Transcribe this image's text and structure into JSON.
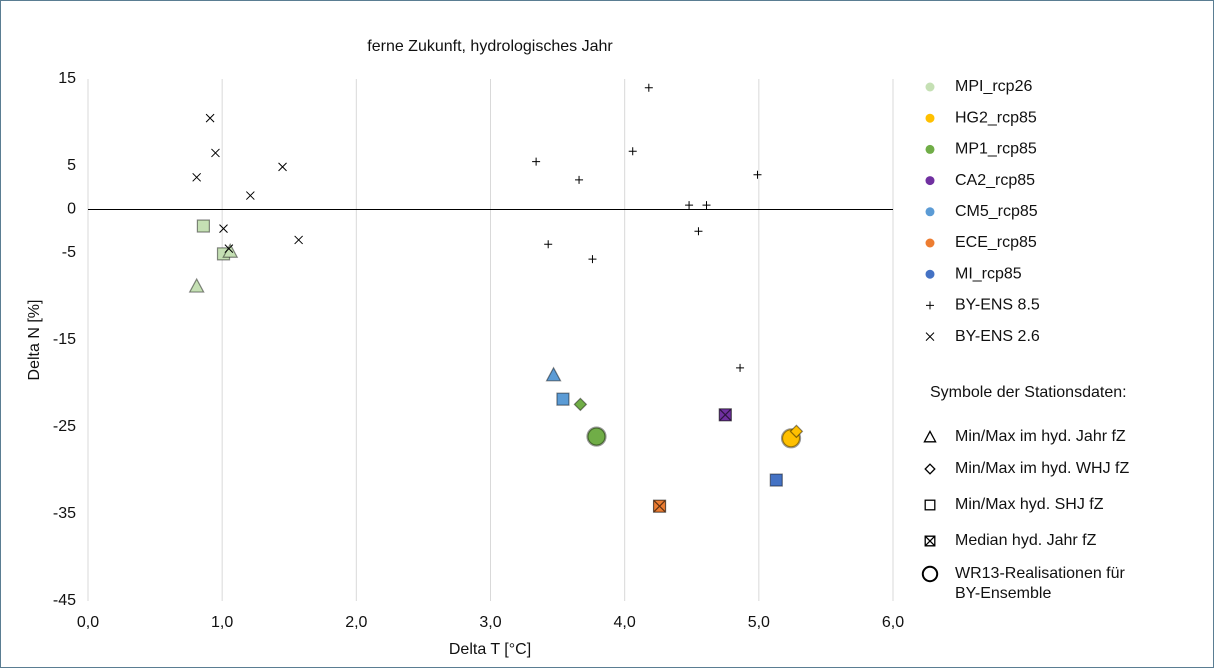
{
  "chart_data": {
    "type": "scatter",
    "title": "ferne Zukunft, hydrologisches Jahr",
    "x_label": "Delta T [°C]",
    "y_label": "Delta N [%]",
    "xlim": [
      0,
      6
    ],
    "ylim": [
      -45,
      15
    ],
    "xticks": [
      {
        "value": 0,
        "label": "0,0"
      },
      {
        "value": 1,
        "label": "1,0"
      },
      {
        "value": 2,
        "label": "2,0"
      },
      {
        "value": 3,
        "label": "3,0"
      },
      {
        "value": 4,
        "label": "4,0"
      },
      {
        "value": 5,
        "label": "5,0"
      },
      {
        "value": 6,
        "label": "6,0"
      }
    ],
    "yticks": [
      15,
      5,
      0,
      -5,
      -15,
      -25,
      -35,
      -45
    ],
    "grid": "x",
    "series": [
      {
        "name": "MPI_rcp26",
        "color": "#c5e0b4",
        "x": [
          0.86,
          1.01,
          1.06,
          0.81
        ],
        "y": [
          -1.9,
          -5.1,
          -4.8,
          -8.8
        ],
        "markers": [
          "square",
          "square",
          "triangle",
          "triangle"
        ]
      },
      {
        "name": "HG2_rcp85",
        "color": "#ffc000",
        "x": [
          5.24,
          5.28
        ],
        "y": [
          -26.3,
          -25.5
        ],
        "markers": [
          "circle",
          "diamond"
        ]
      },
      {
        "name": "MP1_rcp85",
        "color": "#70ad47",
        "x": [
          3.79,
          3.67
        ],
        "y": [
          -26.1,
          -22.4
        ],
        "markers": [
          "circle",
          "diamond"
        ]
      },
      {
        "name": "CA2_rcp85",
        "color": "#7030a0",
        "x": [
          4.75
        ],
        "y": [
          -23.6
        ],
        "markers": [
          "median"
        ]
      },
      {
        "name": "CM5_rcp85",
        "color": "#5b9bd5",
        "x": [
          3.47,
          3.54
        ],
        "y": [
          -19.0,
          -21.8
        ],
        "markers": [
          "triangle",
          "square"
        ]
      },
      {
        "name": "ECE_rcp85",
        "color": "#ed7d31",
        "x": [
          4.26
        ],
        "y": [
          -34.1
        ],
        "markers": [
          "median"
        ]
      },
      {
        "name": "MI_rcp85",
        "color": "#4472c4",
        "x": [
          5.13
        ],
        "y": [
          -31.1
        ],
        "markers": [
          "square"
        ]
      },
      {
        "name": "BY-ENS 8.5",
        "color": "#000000",
        "legend_marker": "plus",
        "x": [
          4.18,
          3.34,
          4.06,
          3.66,
          4.99,
          4.48,
          4.61,
          4.55,
          3.43,
          3.76,
          4.86
        ],
        "y": [
          14.0,
          5.5,
          6.7,
          3.4,
          4.0,
          0.5,
          0.5,
          -2.5,
          -4.0,
          -5.7,
          -18.2
        ],
        "markers": [
          "plus",
          "plus",
          "plus",
          "plus",
          "plus",
          "plus",
          "plus",
          "plus",
          "plus",
          "plus",
          "plus"
        ]
      },
      {
        "name": "BY-ENS 2.6",
        "color": "#000000",
        "legend_marker": "cross",
        "x": [
          0.91,
          0.95,
          0.81,
          1.45,
          1.21,
          1.01,
          1.05,
          1.57
        ],
        "y": [
          10.5,
          6.5,
          3.7,
          4.9,
          1.6,
          -2.2,
          -4.5,
          -3.5
        ],
        "markers": [
          "cross",
          "cross",
          "cross",
          "cross",
          "cross",
          "cross",
          "cross",
          "cross"
        ]
      }
    ],
    "symbol_legend": {
      "title": "Symbole der Stationsdaten:",
      "items": [
        {
          "label": "Min/Max im hyd. Jahr fZ",
          "marker": "triangle"
        },
        {
          "label": "Min/Max im hyd. WHJ fZ",
          "marker": "diamond"
        },
        {
          "label": "Min/Max hyd. SHJ fZ",
          "marker": "square"
        },
        {
          "label": "Median hyd. Jahr fZ",
          "marker": "median"
        },
        {
          "label": "WR13-Realisationen für BY-Ensemble",
          "marker": "circle"
        }
      ]
    }
  }
}
